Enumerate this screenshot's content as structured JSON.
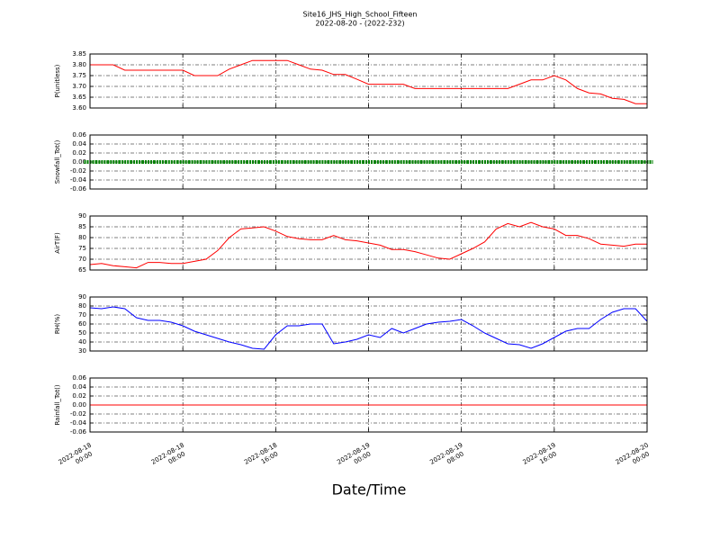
{
  "chart_data": {
    "type": "line",
    "title": "Site16_JHS_High_School_Fifteen",
    "subtitle": "2022-08-20 - (2022-232)",
    "xlabel": "Date/Time",
    "grid": true,
    "xlim": [
      "2022-08-18 00:00",
      "2022-08-20 00:00"
    ],
    "xticks": [
      {
        "value": "2022-08-18 00:00",
        "label": [
          "2022-08-18",
          "00:00"
        ]
      },
      {
        "value": "2022-08-18 08:00",
        "label": [
          "2022-08-18",
          "08:00"
        ]
      },
      {
        "value": "2022-08-18 16:00",
        "label": [
          "2022-08-18",
          "16:00"
        ]
      },
      {
        "value": "2022-08-19 00:00",
        "label": [
          "2022-08-19",
          "00:00"
        ]
      },
      {
        "value": "2022-08-19 08:00",
        "label": [
          "2022-08-19",
          "08:00"
        ]
      },
      {
        "value": "2022-08-19 16:00",
        "label": [
          "2022-08-19",
          "16:00"
        ]
      },
      {
        "value": "2022-08-20 00:00",
        "label": [
          "2022-08-20",
          "00:00"
        ]
      }
    ],
    "x": [
      "2022-08-18 00:00",
      "2022-08-18 01:00",
      "2022-08-18 02:00",
      "2022-08-18 03:00",
      "2022-08-18 04:00",
      "2022-08-18 05:00",
      "2022-08-18 06:00",
      "2022-08-18 07:00",
      "2022-08-18 08:00",
      "2022-08-18 09:00",
      "2022-08-18 10:00",
      "2022-08-18 11:00",
      "2022-08-18 12:00",
      "2022-08-18 13:00",
      "2022-08-18 14:00",
      "2022-08-18 15:00",
      "2022-08-18 16:00",
      "2022-08-18 17:00",
      "2022-08-18 18:00",
      "2022-08-18 19:00",
      "2022-08-18 20:00",
      "2022-08-18 21:00",
      "2022-08-18 22:00",
      "2022-08-18 23:00",
      "2022-08-19 00:00",
      "2022-08-19 01:00",
      "2022-08-19 02:00",
      "2022-08-19 03:00",
      "2022-08-19 04:00",
      "2022-08-19 05:00",
      "2022-08-19 06:00",
      "2022-08-19 07:00",
      "2022-08-19 08:00",
      "2022-08-19 09:00",
      "2022-08-19 10:00",
      "2022-08-19 11:00",
      "2022-08-19 12:00",
      "2022-08-19 13:00",
      "2022-08-19 14:00",
      "2022-08-19 15:00",
      "2022-08-19 16:00",
      "2022-08-19 17:00",
      "2022-08-19 18:00",
      "2022-08-19 19:00",
      "2022-08-19 20:00",
      "2022-08-19 21:00",
      "2022-08-19 22:00",
      "2022-08-19 23:00",
      "2022-08-20 00:00"
    ],
    "panels": [
      {
        "ylabel": "P(unitless)",
        "ylim": [
          3.6,
          3.85
        ],
        "yticks": [
          {
            "value": 3.6,
            "label": "3.60"
          },
          3.65,
          {
            "value": 3.7,
            "label": "3.70"
          },
          3.75,
          {
            "value": 3.8,
            "label": "3.80"
          },
          3.85
        ],
        "series": [
          {
            "color": "#ff0000",
            "style": "line",
            "values": [
              3.8,
              3.8,
              3.8,
              3.775,
              3.775,
              3.775,
              3.775,
              3.775,
              3.775,
              3.75,
              3.75,
              3.75,
              3.78,
              3.8,
              3.82,
              3.82,
              3.82,
              3.82,
              3.8,
              3.78,
              3.775,
              3.755,
              3.755,
              3.733,
              3.71,
              3.71,
              3.71,
              3.71,
              3.69,
              3.69,
              3.69,
              3.69,
              3.69,
              3.69,
              3.69,
              3.69,
              3.69,
              3.71,
              3.73,
              3.73,
              3.75,
              3.73,
              3.69,
              3.67,
              3.665,
              3.645,
              3.64,
              3.62,
              3.62
            ]
          }
        ]
      },
      {
        "ylabel": "Snowfall_Tot()",
        "ylim": [
          -0.06,
          0.06
        ],
        "yticks": [
          -0.06,
          -0.04,
          -0.02,
          {
            "value": 0,
            "label": "0.00"
          },
          0.02,
          0.04,
          0.06
        ],
        "series": [
          {
            "color": "#008000",
            "style": "dots",
            "values": [
              0,
              0,
              0,
              0,
              0,
              0,
              0,
              0,
              0,
              0,
              0,
              0,
              0,
              0,
              0,
              0,
              0,
              0,
              0,
              0,
              0,
              0,
              0,
              0,
              0,
              0,
              0,
              0,
              0,
              0,
              0,
              0,
              0,
              0,
              0,
              0,
              0,
              0,
              0,
              0,
              0,
              0,
              0,
              0,
              0,
              0,
              0,
              0,
              0
            ]
          }
        ]
      },
      {
        "ylabel": "AirT(F)",
        "ylim": [
          65,
          90
        ],
        "yticks": [
          65,
          70,
          75,
          80,
          85,
          90
        ],
        "series": [
          {
            "color": "#ff0000",
            "style": "line",
            "values": [
              67.5,
              68,
              67,
              66.5,
              66,
              68.5,
              68.5,
              68,
              68,
              69,
              70,
              74,
              80,
              84,
              84.5,
              85,
              83,
              80.5,
              79.5,
              79,
              79,
              81,
              79,
              78.5,
              77.5,
              76.5,
              74.5,
              74.5,
              73.5,
              72,
              70.5,
              70,
              72.5,
              75,
              78,
              84,
              86.5,
              85,
              87,
              85,
              84,
              81,
              81,
              79.5,
              77,
              76.5,
              76,
              77,
              77
            ]
          }
        ]
      },
      {
        "ylabel": "RH(%)",
        "ylim": [
          30,
          90
        ],
        "yticks": [
          30,
          40,
          50,
          60,
          70,
          80,
          90
        ],
        "series": [
          {
            "color": "#0000ff",
            "style": "line",
            "values": [
              78,
              77,
              79,
              77,
              67,
              64,
              64,
              62,
              58,
              52,
              48,
              44,
              40,
              37,
              33,
              32,
              48,
              58,
              58,
              60,
              60,
              38,
              40,
              43,
              48,
              45,
              55,
              50,
              55,
              60,
              62,
              63,
              65,
              58,
              50,
              44,
              38,
              37,
              33,
              38,
              45,
              52,
              55,
              55,
              65,
              73,
              77,
              77,
              63
            ]
          }
        ]
      },
      {
        "ylabel": "Rainfall_Tot()",
        "ylim": [
          -0.06,
          0.06
        ],
        "yticks": [
          -0.06,
          -0.04,
          -0.02,
          {
            "value": 0,
            "label": "0.00"
          },
          0.02,
          0.04,
          0.06
        ],
        "series": [
          {
            "color": "#ff0000",
            "style": "line",
            "values": [
              0,
              0,
              0,
              0,
              0,
              0,
              0,
              0,
              0,
              0,
              0,
              0,
              0,
              0,
              0,
              0,
              0,
              0,
              0,
              0,
              0,
              0,
              0,
              0,
              0,
              0,
              0,
              0,
              0,
              0,
              0,
              0,
              0,
              0,
              0,
              0,
              0,
              0,
              0,
              0,
              0,
              0,
              0,
              0,
              0,
              0,
              0,
              0,
              0
            ]
          }
        ]
      }
    ]
  }
}
